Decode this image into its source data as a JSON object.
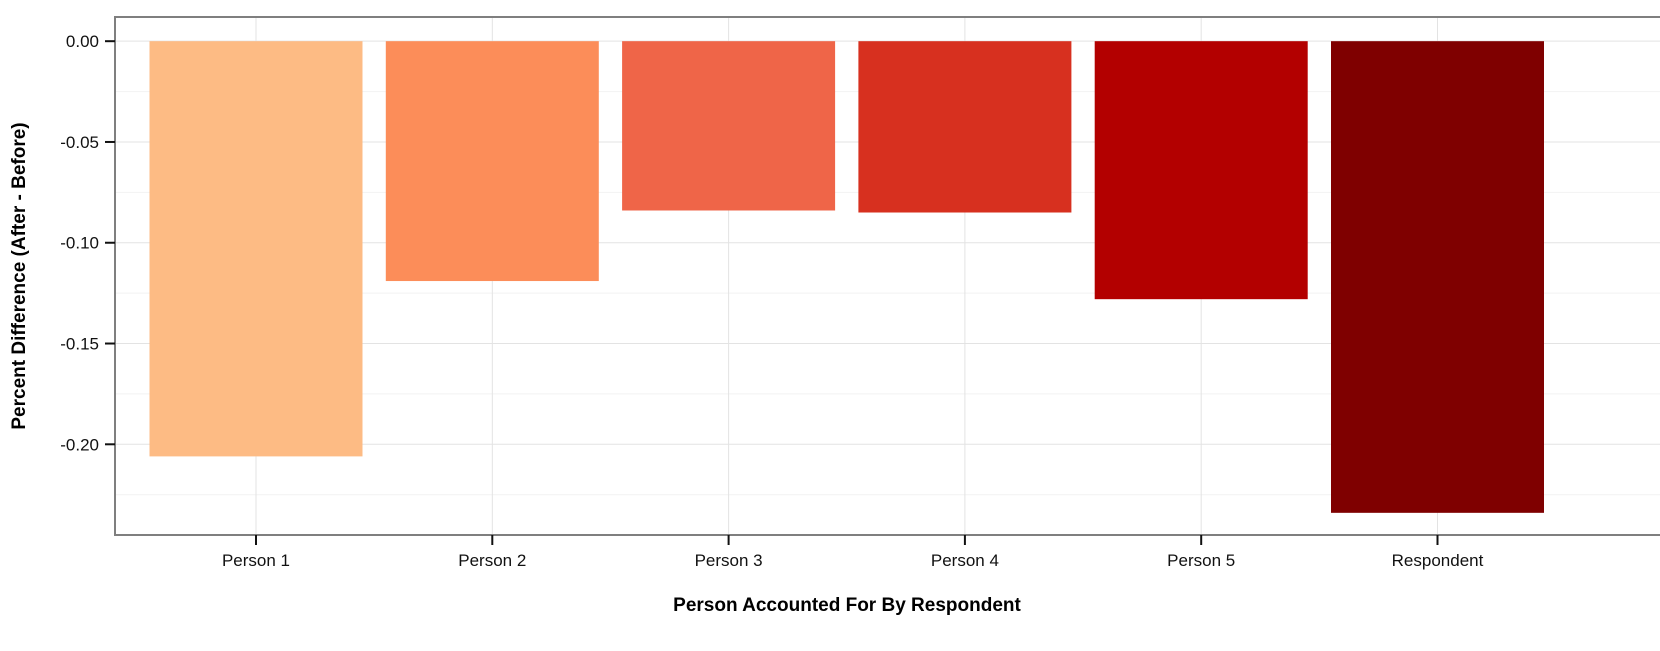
{
  "chart_data": {
    "type": "bar",
    "title": "",
    "xlabel": "Person Accounted For By Respondent",
    "ylabel": "Percent Difference (After - Before)",
    "categories": [
      "Person 1",
      "Person 2",
      "Person 3",
      "Person 4",
      "Person 5",
      "Respondent"
    ],
    "values": [
      -0.206,
      -0.119,
      -0.084,
      -0.085,
      -0.128,
      -0.234
    ],
    "colors": [
      "#FDBB84",
      "#FC8D59",
      "#EF6548",
      "#D7301F",
      "#B30000",
      "#7F0000"
    ],
    "ylim": [
      -0.245,
      0.012
    ],
    "yticks": [
      0.0,
      -0.05,
      -0.1,
      -0.15,
      -0.2
    ],
    "ytick_labels": [
      "0.00",
      "-0.05",
      "-0.10",
      "-0.15",
      "-0.20"
    ],
    "grid": true,
    "legend": "none"
  }
}
